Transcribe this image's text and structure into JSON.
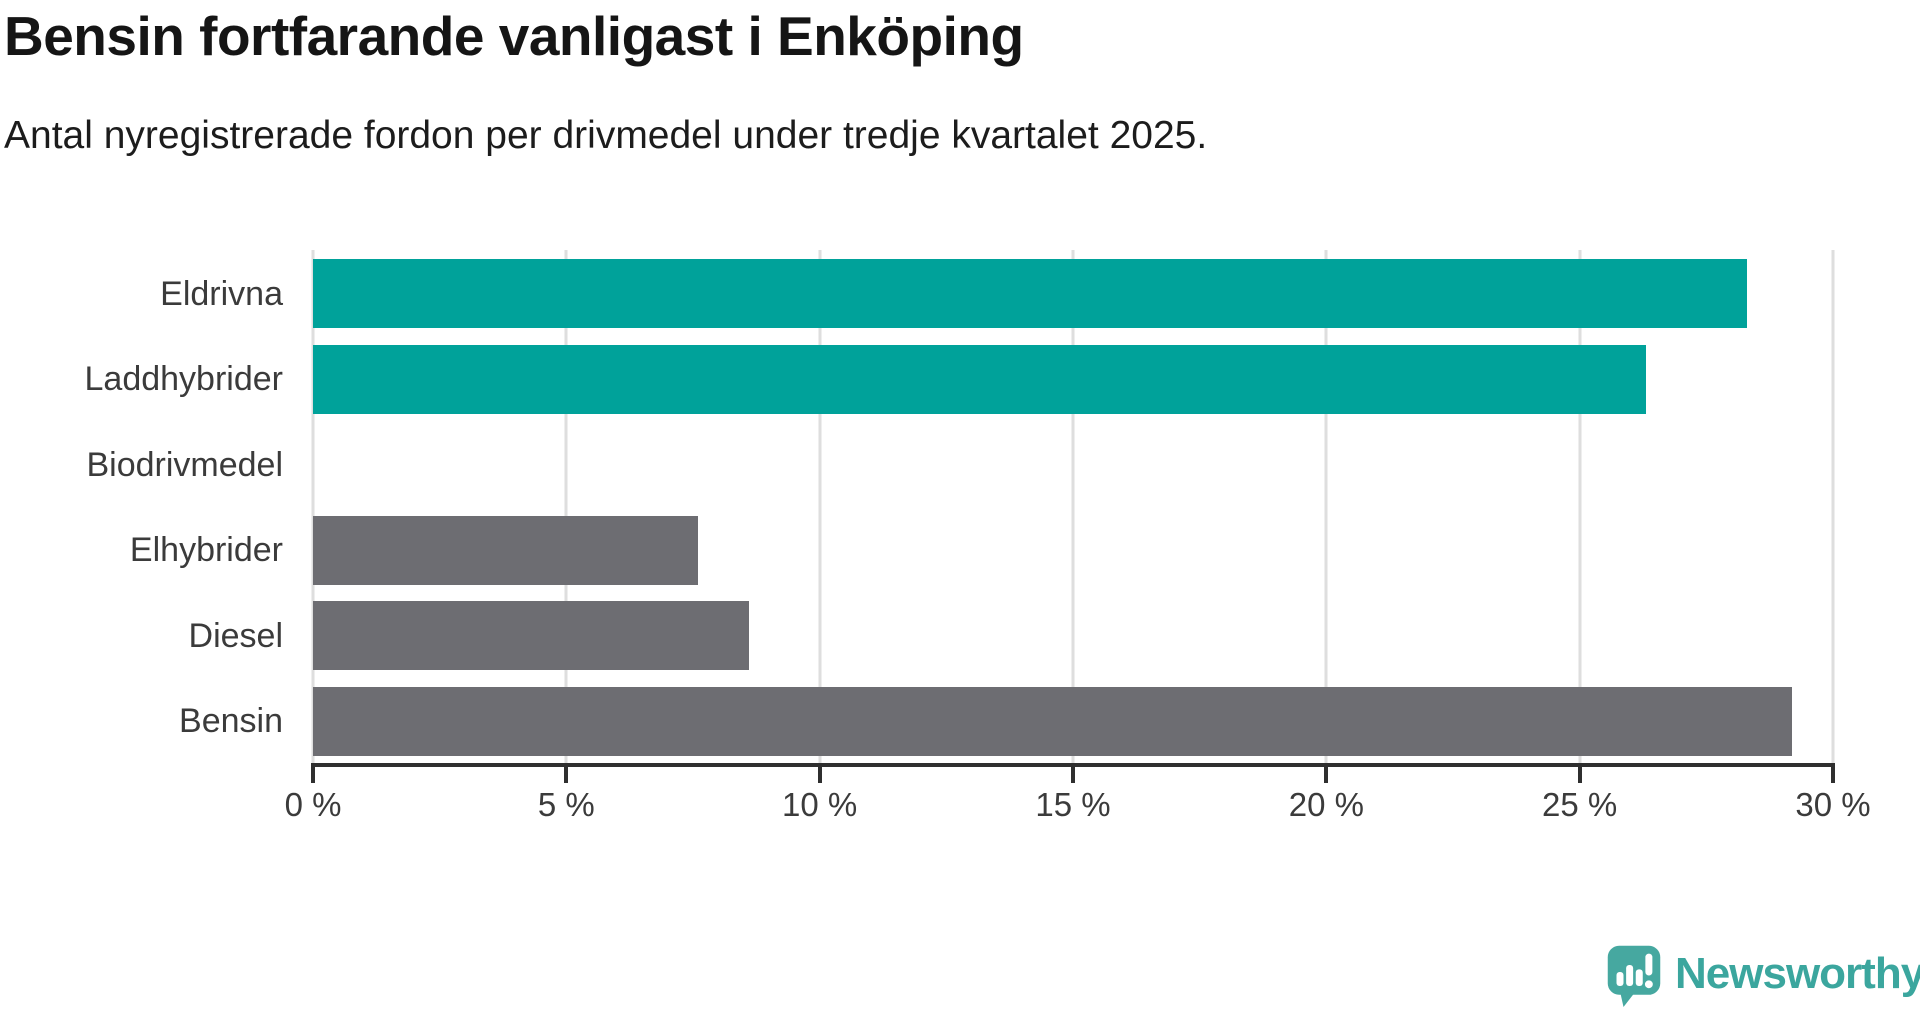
{
  "header": {
    "title": "Bensin fortfarande vanligast i Enköping",
    "subtitle": "Antal nyregistrerade fordon per drivmedel under tredje kvartalet 2025."
  },
  "chart_data": {
    "type": "bar",
    "orientation": "horizontal",
    "title": "Bensin fortfarande vanligast i Enköping",
    "subtitle": "Antal nyregistrerade fordon per drivmedel under tredje kvartalet 2025.",
    "categories": [
      "Eldrivna",
      "Laddhybrider",
      "Biodrivmedel",
      "Elhybrider",
      "Diesel",
      "Bensin"
    ],
    "values": [
      28.3,
      26.3,
      0,
      7.6,
      8.6,
      29.2
    ],
    "unit": "%",
    "bar_colors": [
      "#00A29A",
      "#00A29A",
      "#6D6D72",
      "#6D6D72",
      "#6D6D72",
      "#6D6D72"
    ],
    "highlight_color": "#00A29A",
    "base_color": "#6D6D72",
    "xlabel": "",
    "ylabel": "",
    "xlim": [
      0,
      30
    ],
    "xticks": [
      0,
      5,
      10,
      15,
      20,
      25,
      30
    ],
    "xtick_labels": [
      "0 %",
      "5 %",
      "10 %",
      "15 %",
      "20 %",
      "25 %",
      "30 %"
    ],
    "grid": true,
    "legend": false
  },
  "branding": {
    "logo_text": "Newsworthy",
    "logo_icon": "newsworthy-speech-bubble-chart-icon",
    "logo_text_color": "#3BA69E",
    "logo_icon_color": "#46A8A0"
  },
  "colors": {
    "background": "#FFFFFF",
    "title_text": "#151515",
    "label_text": "#3B3B3B",
    "axis": "#2F2F2F",
    "gridline": "#DEDEDE"
  }
}
